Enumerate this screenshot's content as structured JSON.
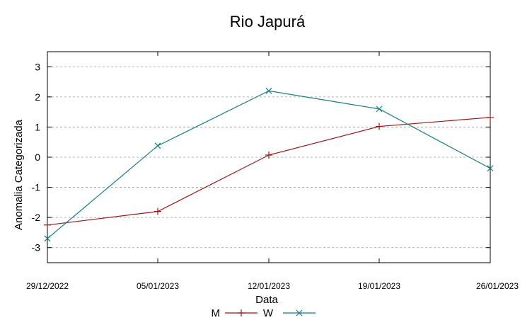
{
  "chart_data": {
    "type": "line",
    "title": "Rio Japurá",
    "xlabel": "Data",
    "ylabel": "Anomalia Categorizada",
    "categories": [
      "29/12/2022",
      "05/01/2023",
      "12/01/2023",
      "19/01/2023",
      "26/01/2023"
    ],
    "yticks": [
      "3",
      "2",
      "1",
      "0",
      "-1",
      "-2",
      "-3"
    ],
    "ylim": [
      -3.5,
      3.5
    ],
    "grid": true,
    "legend_position": "bottom-center",
    "series": [
      {
        "name": "M",
        "color": "#a01616",
        "marker": "plus",
        "values": [
          -2.25,
          -1.8,
          0.07,
          1.02,
          1.32
        ]
      },
      {
        "name": "W",
        "color": "#157e82",
        "marker": "cross",
        "values": [
          -2.7,
          0.38,
          2.2,
          1.6,
          -0.37
        ]
      }
    ]
  }
}
